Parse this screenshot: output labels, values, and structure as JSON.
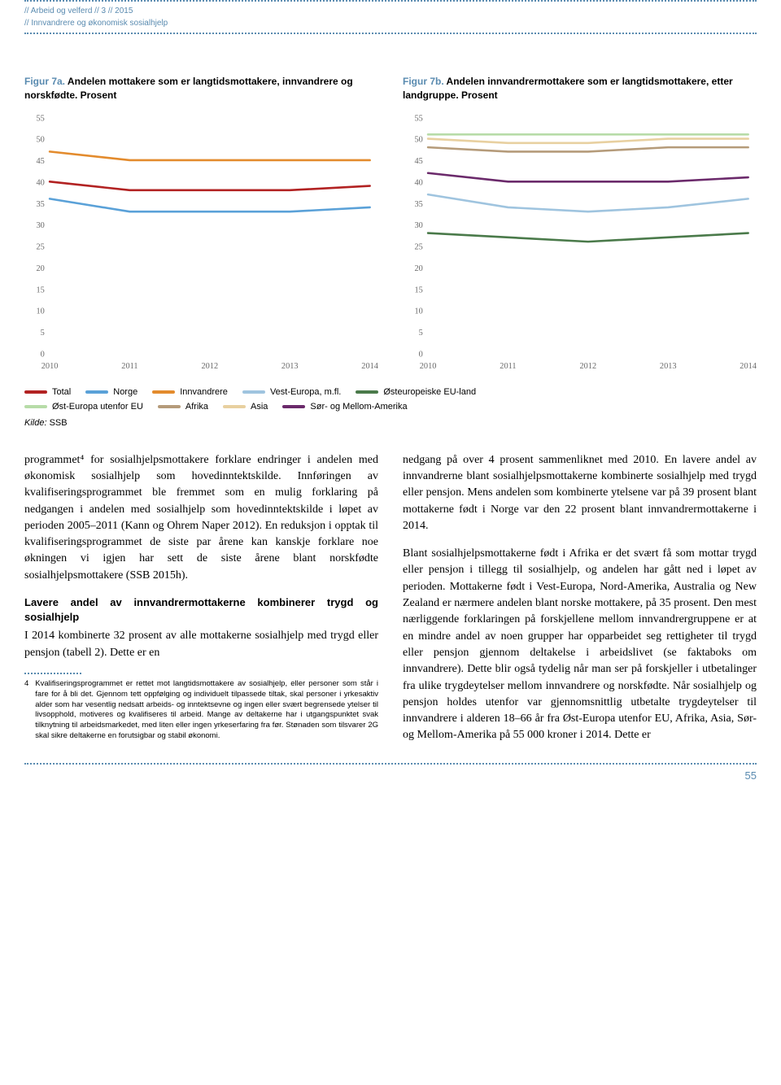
{
  "header": {
    "line1": "// Arbeid og velferd // 3 // 2015",
    "line2": "// Innvandrere og økonomisk sosialhjelp"
  },
  "chart7a": {
    "figlabel": "Figur 7a.",
    "title": " Andelen mottakere som er langtidsmottakere, innvandrere og norskfødte. Prosent",
    "ylim": [
      0,
      55
    ],
    "ytick_step": 5,
    "xlabels": [
      "2010",
      "2011",
      "2012",
      "2013",
      "2014"
    ],
    "axis_fontsize": 10,
    "axis_color": "#6a6a6a",
    "series": [
      {
        "name": "Total",
        "color": "#b22222",
        "values": [
          40,
          38,
          38,
          38,
          39
        ]
      },
      {
        "name": "Norge",
        "color": "#5aa1d8",
        "values": [
          36,
          33,
          33,
          33,
          34
        ]
      },
      {
        "name": "Innvandrere",
        "color": "#e38b2d",
        "values": [
          47,
          45,
          45,
          45,
          45
        ]
      }
    ],
    "line_width": 2.5
  },
  "chart7b": {
    "figlabel": "Figur 7b.",
    "title": " Andelen innvandrermottakere som er langtidsmottakere, etter landgruppe. Prosent",
    "ylim": [
      0,
      55
    ],
    "ytick_step": 5,
    "xlabels": [
      "2010",
      "2011",
      "2012",
      "2013",
      "2014"
    ],
    "axis_fontsize": 10,
    "axis_color": "#6a6a6a",
    "series": [
      {
        "name": "Vest-Europa, m.fl.",
        "color": "#9fc4df",
        "values": [
          37,
          34,
          33,
          34,
          36
        ]
      },
      {
        "name": "Østeuropeiske EU-land",
        "color": "#4a7a4a",
        "values": [
          28,
          27,
          26,
          27,
          28
        ]
      },
      {
        "name": "Øst-Europa utenfor EU",
        "color": "#b7dca8",
        "values": [
          51,
          51,
          51,
          51,
          51
        ]
      },
      {
        "name": "Afrika",
        "color": "#b59b7a",
        "values": [
          48,
          47,
          47,
          48,
          48
        ]
      },
      {
        "name": "Asia",
        "color": "#e8d0a0",
        "values": [
          50,
          49,
          49,
          50,
          50
        ]
      },
      {
        "name": "Sør- og Mellom-Amerika",
        "color": "#6b2a6b",
        "values": [
          42,
          40,
          40,
          40,
          41
        ]
      }
    ],
    "line_width": 2.5
  },
  "legend": {
    "row1": [
      {
        "label": "Total",
        "color": "#b22222"
      },
      {
        "label": "Norge",
        "color": "#5aa1d8"
      },
      {
        "label": "Innvandrere",
        "color": "#e38b2d"
      },
      {
        "label": "Vest-Europa, m.fl.",
        "color": "#9fc4df"
      },
      {
        "label": "Østeuropeiske EU-land",
        "color": "#4a7a4a"
      }
    ],
    "row2": [
      {
        "label": "Øst-Europa utenfor EU",
        "color": "#b7dca8"
      },
      {
        "label": "Afrika",
        "color": "#b59b7a"
      },
      {
        "label": "Asia",
        "color": "#e8d0a0"
      },
      {
        "label": "Sør- og Mellom-Amerika",
        "color": "#6b2a6b"
      }
    ]
  },
  "kilde": "Kilde: SSB",
  "body": {
    "p1": "programmet⁴ for sosialhjelpsmottakere forklare endringer i andelen med økonomisk sosialhjelp som hovedinntektskilde. Innføringen av kvalifiseringsprogrammet ble fremmet som en mulig forklaring på nedgangen i andelen med sosialhjelp som hovedinntektskilde i løpet av perioden 2005–2011 (Kann og Ohrem Naper 2012). En reduksjon i opptak til kvalifiseringsprogrammet de siste par årene kan kanskje forklare noe økningen vi igjen har sett de siste årene blant norskfødte sosialhjelpsmottakere (SSB 2015h).",
    "h3": "Lavere andel av innvandrermottakerne kombinerer trygd og sosialhjelp",
    "p2": "I 2014 kombinerte 32 prosent av alle mottakerne sosialhjelp med trygd eller pensjon (tabell 2). Dette er en",
    "fn_num": "4",
    "fn_text": "Kvalifiseringsprogrammet er rettet mot langtidsmottakere av sosialhjelp, eller personer som står i fare for å bli det. Gjennom tett oppfølging og individuelt tilpassede tiltak, skal personer i yrkesaktiv alder som har vesentlig nedsatt arbeids- og inntektsevne og ingen eller svært begrensede ytelser til livsopphold, motiveres og kvalifiseres til arbeid. Mange av deltakerne har i utgangspunktet svak tilknytning til arbeidsmarkedet, med liten eller ingen yrkeserfaring fra før. Stønaden som tilsvarer 2G skal sikre deltakerne en forutsigbar og stabil økonomi.",
    "p3": "nedgang på over 4 prosent sammenliknet med 2010. En lavere andel av innvandrerne blant sosialhjelpsmottakerne kombinerte sosialhjelp med trygd eller pensjon. Mens andelen som kombinerte ytelsene var på 39 prosent blant mottakerne født i Norge var den 22 prosent blant innvandrermottakerne i 2014.",
    "p4": "Blant sosialhjelpsmottakerne født i Afrika er det svært få som mottar trygd eller pensjon i tillegg til sosialhjelp, og andelen har gått ned i løpet av perioden. Mottakerne født i Vest-Europa, Nord-Amerika, Australia og New Zealand er nærmere andelen blant norske mottakere, på 35 prosent. Den mest nærliggende forklaringen på forskjellene mellom innvandrergruppene er at en mindre andel av noen grupper har opparbeidet seg rettigheter til trygd eller pensjon gjennom deltakelse i arbeidslivet (se faktaboks om innvandrere). Dette blir også tydelig når man ser på forskjeller i utbetalinger fra ulike trygdeytelser mellom innvandrere og norskfødte. Når sosialhjelp og pensjon holdes utenfor var gjennomsnittlig utbetalte trygdeytelser til innvandrere i alderen 18–66 år fra Øst-Europa utenfor EU, Afrika, Asia, Sør- og Mellom-Amerika på 55 000 kroner i 2014. Dette er"
  },
  "page_number": "55"
}
